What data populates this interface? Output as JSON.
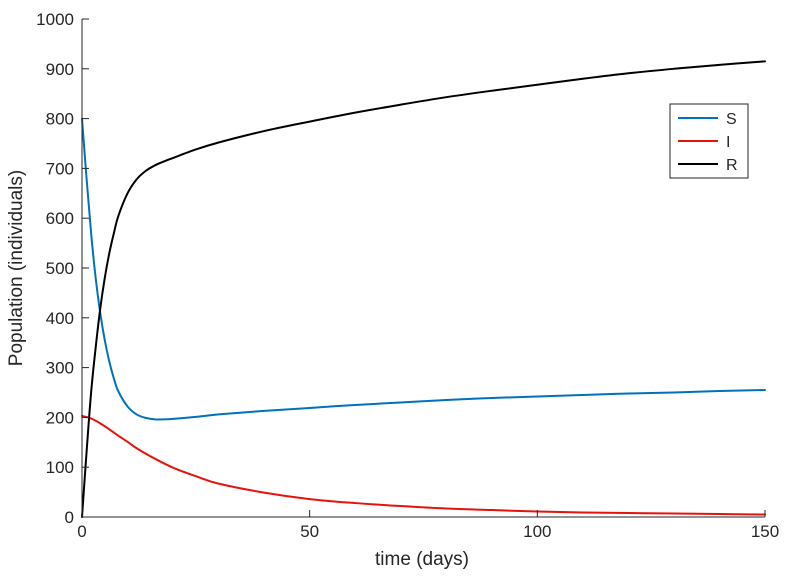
{
  "chart_data": {
    "type": "line",
    "title": "",
    "xlabel": "time (days)",
    "ylabel": "Population (individuals)",
    "xlim": [
      0,
      150
    ],
    "ylim": [
      0,
      1000
    ],
    "xticks": [
      0,
      50,
      100,
      150
    ],
    "yticks": [
      0,
      100,
      200,
      300,
      400,
      500,
      600,
      700,
      800,
      900,
      1000
    ],
    "grid": false,
    "legend_position": "top-right",
    "series": [
      {
        "name": "S",
        "color": "#0072BD",
        "x": [
          0,
          1,
          2,
          3,
          4,
          5,
          6,
          7,
          8,
          10,
          12,
          14,
          16,
          18,
          20,
          25,
          30,
          40,
          50,
          60,
          70,
          80,
          90,
          100,
          110,
          120,
          130,
          140,
          150
        ],
        "y": [
          800,
          680,
          570,
          480,
          410,
          355,
          312,
          278,
          252,
          222,
          206,
          199,
          196,
          196,
          197,
          201,
          206,
          213,
          219,
          225,
          230,
          235,
          239,
          242,
          245,
          248,
          250,
          253,
          255
        ]
      },
      {
        "name": "I",
        "color": "#E8120C",
        "x": [
          0,
          2,
          4,
          6,
          8,
          10,
          12,
          15,
          20,
          25,
          30,
          40,
          50,
          60,
          70,
          80,
          90,
          100,
          110,
          120,
          130,
          140,
          150
        ],
        "y": [
          203,
          198,
          188,
          176,
          163,
          151,
          138,
          122,
          99,
          82,
          67,
          49,
          36,
          28,
          22,
          17,
          14,
          11,
          9,
          8,
          7,
          6,
          5
        ]
      },
      {
        "name": "R",
        "color": "#000000",
        "x": [
          0,
          1,
          2,
          3,
          4,
          5,
          6,
          7,
          8,
          10,
          12,
          14,
          16,
          18,
          20,
          25,
          30,
          40,
          50,
          60,
          70,
          80,
          90,
          100,
          110,
          120,
          130,
          140,
          150
        ],
        "y": [
          0,
          130,
          250,
          340,
          418,
          480,
          530,
          570,
          605,
          650,
          678,
          695,
          706,
          714,
          721,
          738,
          752,
          775,
          794,
          812,
          828,
          843,
          856,
          868,
          880,
          891,
          900,
          908,
          915
        ]
      }
    ]
  }
}
